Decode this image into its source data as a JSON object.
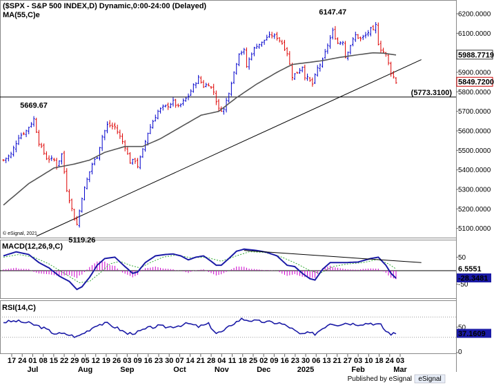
{
  "chart_data": [
    {
      "type": "candlestick",
      "title": "($SPX - S&P 500 INDEX,D) Dynamic,0:00-24:00 (Delayed)",
      "indicator_label": "MA(55,C)e",
      "watermark": "© eSignal, 2021",
      "ylim": [
        5060,
        6260
      ],
      "yticks": [
        5100,
        5200,
        5300,
        5400,
        5500,
        5600,
        5700,
        5800,
        5900,
        6000,
        6100,
        6200
      ],
      "ytick_labels": [
        "5100.0000",
        "5200.0000",
        "5300.0000",
        "5400.0000",
        "5500.0000",
        "5600.0000",
        "5700.0000",
        "5800.0000",
        "5900.0000",
        "6000.0000",
        "6100.0000",
        "6200.0000"
      ],
      "annotations": [
        {
          "text": "6147.47",
          "value": 6147.47,
          "x_index": 130
        },
        {
          "text": "5669.67",
          "value": 5669.67,
          "x_index": 12
        },
        {
          "text": "5119.26",
          "value": 5119.26,
          "x_index": 31
        },
        {
          "text": "(5773.3100)",
          "value": 5773.31
        }
      ],
      "value_badges": [
        {
          "text": "5988.7719",
          "value": 5988.7719,
          "color": "#333333",
          "bg": "#ffffff"
        },
        {
          "text": "5849.7200",
          "value": 5849.72,
          "color": "#cc0000",
          "bg": "#ffffff"
        }
      ],
      "horizontal_line": 5773.31,
      "trendline": {
        "from": [
          13,
          5060
        ],
        "to": [
          165,
          5965
        ]
      },
      "up_color": "#0000cc",
      "down_color": "#dd0000",
      "ma_color": "#555555",
      "x_labels": [
        "17",
        "24",
        "01",
        "08",
        "15",
        "22",
        "29",
        "05",
        "12",
        "19",
        "26",
        "03",
        "09",
        "16",
        "23",
        "30",
        "07",
        "14",
        "21",
        "28",
        "04",
        "11",
        "18",
        "25",
        "02",
        "09",
        "16",
        "23",
        "30",
        "06",
        "13",
        "21",
        "27",
        "03",
        "10",
        "18",
        "24",
        "03"
      ],
      "month_labels": [
        {
          "text": "Jul",
          "index": 2
        },
        {
          "text": "Aug",
          "index": 7
        },
        {
          "text": "Sep",
          "index": 11
        },
        {
          "text": "Oct",
          "index": 16
        },
        {
          "text": "Nov",
          "index": 20
        },
        {
          "text": "Dec",
          "index": 24
        },
        {
          "text": "2025",
          "index": 28
        },
        {
          "text": "Feb",
          "index": 33
        },
        {
          "text": "Mar",
          "index": 37
        }
      ],
      "keypoints": [
        [
          0,
          5450
        ],
        [
          3,
          5480
        ],
        [
          6,
          5570
        ],
        [
          9,
          5600
        ],
        [
          12,
          5660
        ],
        [
          14,
          5540
        ],
        [
          17,
          5460
        ],
        [
          20,
          5450
        ],
        [
          21,
          5420
        ],
        [
          23,
          5480
        ],
        [
          25,
          5300
        ],
        [
          27,
          5200
        ],
        [
          28,
          5150
        ],
        [
          29,
          5120
        ],
        [
          31,
          5260
        ],
        [
          33,
          5350
        ],
        [
          35,
          5430
        ],
        [
          37,
          5470
        ],
        [
          39,
          5570
        ],
        [
          41,
          5630
        ],
        [
          44,
          5620
        ],
        [
          46,
          5570
        ],
        [
          48,
          5520
        ],
        [
          50,
          5440
        ],
        [
          52,
          5450
        ],
        [
          53,
          5420
        ],
        [
          55,
          5500
        ],
        [
          57,
          5590
        ],
        [
          59,
          5650
        ],
        [
          61,
          5700
        ],
        [
          63,
          5720
        ],
        [
          65,
          5730
        ],
        [
          67,
          5750
        ],
        [
          69,
          5720
        ],
        [
          71,
          5750
        ],
        [
          73,
          5780
        ],
        [
          75,
          5830
        ],
        [
          77,
          5870
        ],
        [
          79,
          5830
        ],
        [
          81,
          5840
        ],
        [
          83,
          5800
        ],
        [
          85,
          5710
        ],
        [
          87,
          5710
        ],
        [
          89,
          5800
        ],
        [
          91,
          5900
        ],
        [
          93,
          6000
        ],
        [
          95,
          6010
        ],
        [
          96,
          5930
        ],
        [
          98,
          6000
        ],
        [
          100,
          6040
        ],
        [
          102,
          6050
        ],
        [
          104,
          6080
        ],
        [
          106,
          6090
        ],
        [
          108,
          6080
        ],
        [
          110,
          6050
        ],
        [
          112,
          6000
        ],
        [
          114,
          5880
        ],
        [
          116,
          5900
        ],
        [
          118,
          5930
        ],
        [
          119,
          5880
        ],
        [
          120,
          5870
        ],
        [
          122,
          5840
        ],
        [
          124,
          5920
        ],
        [
          126,
          5960
        ],
        [
          128,
          6040
        ],
        [
          130,
          6110
        ],
        [
          132,
          6050
        ],
        [
          134,
          6060
        ],
        [
          135,
          5980
        ],
        [
          137,
          6040
        ],
        [
          139,
          6090
        ],
        [
          141,
          6070
        ],
        [
          143,
          6090
        ],
        [
          145,
          6120
        ],
        [
          146,
          6110
        ],
        [
          147,
          6140
        ],
        [
          148,
          6050
        ],
        [
          149,
          6020
        ],
        [
          151,
          5990
        ],
        [
          153,
          5900
        ],
        [
          155,
          5850
        ]
      ],
      "ma_keypoints": [
        [
          0,
          5220
        ],
        [
          10,
          5330
        ],
        [
          20,
          5410
        ],
        [
          28,
          5430
        ],
        [
          34,
          5450
        ],
        [
          40,
          5490
        ],
        [
          48,
          5520
        ],
        [
          55,
          5520
        ],
        [
          62,
          5560
        ],
        [
          70,
          5620
        ],
        [
          78,
          5680
        ],
        [
          85,
          5700
        ],
        [
          92,
          5770
        ],
        [
          100,
          5840
        ],
        [
          108,
          5900
        ],
        [
          114,
          5940
        ],
        [
          120,
          5950
        ],
        [
          126,
          5960
        ],
        [
          132,
          5975
        ],
        [
          140,
          5990
        ],
        [
          146,
          6000
        ],
        [
          150,
          5998
        ],
        [
          155,
          5988.77
        ]
      ]
    },
    {
      "type": "line",
      "title": "MACD(12,26,9,C)",
      "ylim": [
        -100,
        110
      ],
      "yticks": [
        50,
        -50
      ],
      "ytick_labels": [
        "50",
        "-50"
      ],
      "value_badges": [
        {
          "text": "6.5551",
          "value": 6.5551,
          "color": "#009900",
          "bg": "#ffffff"
        },
        {
          "text": "-28.3481",
          "value": -28.3481,
          "color": "#ffffff",
          "bg": "#1a1aa6"
        }
      ],
      "zero_line": 0,
      "trendline": {
        "from": [
          95,
          75
        ],
        "to": [
          165,
          30
        ]
      },
      "macd_color": "#1a1aa6",
      "signal_color": "#33aa33",
      "hist_color": "#cc00cc",
      "macd_keypoints": [
        [
          0,
          55
        ],
        [
          5,
          70
        ],
        [
          10,
          60
        ],
        [
          14,
          30
        ],
        [
          18,
          10
        ],
        [
          22,
          -20
        ],
        [
          26,
          -40
        ],
        [
          29,
          -70
        ],
        [
          31,
          -60
        ],
        [
          34,
          -25
        ],
        [
          37,
          20
        ],
        [
          40,
          45
        ],
        [
          44,
          50
        ],
        [
          48,
          15
        ],
        [
          51,
          -10
        ],
        [
          53,
          -5
        ],
        [
          56,
          30
        ],
        [
          60,
          55
        ],
        [
          64,
          60
        ],
        [
          67,
          62
        ],
        [
          70,
          55
        ],
        [
          73,
          40
        ],
        [
          76,
          50
        ],
        [
          79,
          55
        ],
        [
          82,
          35
        ],
        [
          84,
          20
        ],
        [
          86,
          20
        ],
        [
          89,
          45
        ],
        [
          92,
          72
        ],
        [
          95,
          80
        ],
        [
          100,
          75
        ],
        [
          104,
          68
        ],
        [
          108,
          55
        ],
        [
          112,
          20
        ],
        [
          115,
          15
        ],
        [
          118,
          -10
        ],
        [
          121,
          -30
        ],
        [
          123,
          -35
        ],
        [
          126,
          5
        ],
        [
          129,
          30
        ],
        [
          132,
          30
        ],
        [
          135,
          30
        ],
        [
          140,
          32
        ],
        [
          145,
          45
        ],
        [
          148,
          50
        ],
        [
          151,
          20
        ],
        [
          153,
          -10
        ],
        [
          155,
          -28.35
        ]
      ],
      "signal_keypoints": [
        [
          0,
          50
        ],
        [
          6,
          60
        ],
        [
          12,
          50
        ],
        [
          18,
          25
        ],
        [
          24,
          -10
        ],
        [
          30,
          -45
        ],
        [
          34,
          -40
        ],
        [
          38,
          -10
        ],
        [
          42,
          25
        ],
        [
          46,
          35
        ],
        [
          50,
          20
        ],
        [
          54,
          10
        ],
        [
          58,
          30
        ],
        [
          63,
          50
        ],
        [
          68,
          58
        ],
        [
          74,
          48
        ],
        [
          80,
          50
        ],
        [
          86,
          35
        ],
        [
          92,
          55
        ],
        [
          97,
          70
        ],
        [
          103,
          68
        ],
        [
          110,
          50
        ],
        [
          116,
          25
        ],
        [
          121,
          0
        ],
        [
          125,
          -10
        ],
        [
          130,
          15
        ],
        [
          136,
          25
        ],
        [
          142,
          30
        ],
        [
          148,
          42
        ],
        [
          152,
          25
        ],
        [
          155,
          6.56
        ]
      ]
    },
    {
      "type": "line",
      "title": "RSI(14,C)",
      "ylim": [
        0,
        100
      ],
      "yticks": [
        50,
        0
      ],
      "ytick_labels": [
        "50",
        "0"
      ],
      "bands": [
        70,
        30
      ],
      "value_badges": [
        {
          "text": "37.1609",
          "value": 37.1609,
          "color": "#ffffff",
          "bg": "#1a1aa6"
        }
      ],
      "rsi_color": "#1a1aa6",
      "rsi_keypoints": [
        [
          0,
          60
        ],
        [
          5,
          62
        ],
        [
          10,
          58
        ],
        [
          15,
          50
        ],
        [
          20,
          38
        ],
        [
          25,
          36
        ],
        [
          29,
          31
        ],
        [
          33,
          42
        ],
        [
          37,
          55
        ],
        [
          41,
          57
        ],
        [
          45,
          48
        ],
        [
          49,
          37
        ],
        [
          53,
          40
        ],
        [
          57,
          48
        ],
        [
          61,
          52
        ],
        [
          65,
          50
        ],
        [
          69,
          53
        ],
        [
          73,
          57
        ],
        [
          77,
          51
        ],
        [
          81,
          56
        ],
        [
          84,
          38
        ],
        [
          87,
          42
        ],
        [
          90,
          55
        ],
        [
          94,
          66
        ],
        [
          99,
          62
        ],
        [
          104,
          60
        ],
        [
          109,
          58
        ],
        [
          113,
          50
        ],
        [
          117,
          36
        ],
        [
          120,
          38
        ],
        [
          123,
          37
        ],
        [
          126,
          48
        ],
        [
          129,
          58
        ],
        [
          132,
          55
        ],
        [
          135,
          58
        ],
        [
          140,
          56
        ],
        [
          145,
          58
        ],
        [
          149,
          54
        ],
        [
          151,
          42
        ],
        [
          153,
          37
        ],
        [
          155,
          37.16
        ]
      ]
    }
  ],
  "footer": {
    "text": "Published by eSignal",
    "logo": "eSignal"
  }
}
